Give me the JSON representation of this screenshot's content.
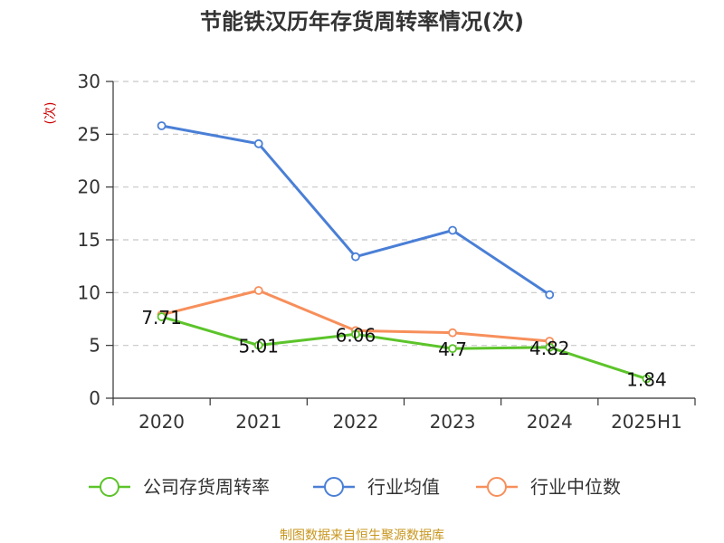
{
  "chart_data": {
    "type": "line",
    "title": "节能铁汉历年存货周转率情况(次)",
    "ylabel": "(次)",
    "categories": [
      "2020",
      "2021",
      "2022",
      "2023",
      "2024",
      "2025H1"
    ],
    "ylim": [
      0,
      30
    ],
    "yticks": [
      0,
      5,
      10,
      15,
      20,
      25,
      30
    ],
    "grid": true,
    "legend_position": "bottom",
    "series": [
      {
        "name": "公司存货周转率",
        "color": "#5cc42a",
        "values": [
          7.71,
          5.01,
          6.06,
          4.7,
          4.82,
          1.84
        ],
        "labels": [
          "7.71",
          "5.01",
          "6.06",
          "4.7",
          "4.82",
          "1.84"
        ]
      },
      {
        "name": "行业均值",
        "color": "#4a7fd6",
        "values": [
          25.8,
          24.1,
          13.4,
          15.9,
          9.8,
          null
        ]
      },
      {
        "name": "行业中位数",
        "color": "#f78f5b",
        "values": [
          7.9,
          10.2,
          6.4,
          6.2,
          5.4,
          null
        ]
      }
    ],
    "source": "制图数据来自恒生聚源数据库"
  }
}
